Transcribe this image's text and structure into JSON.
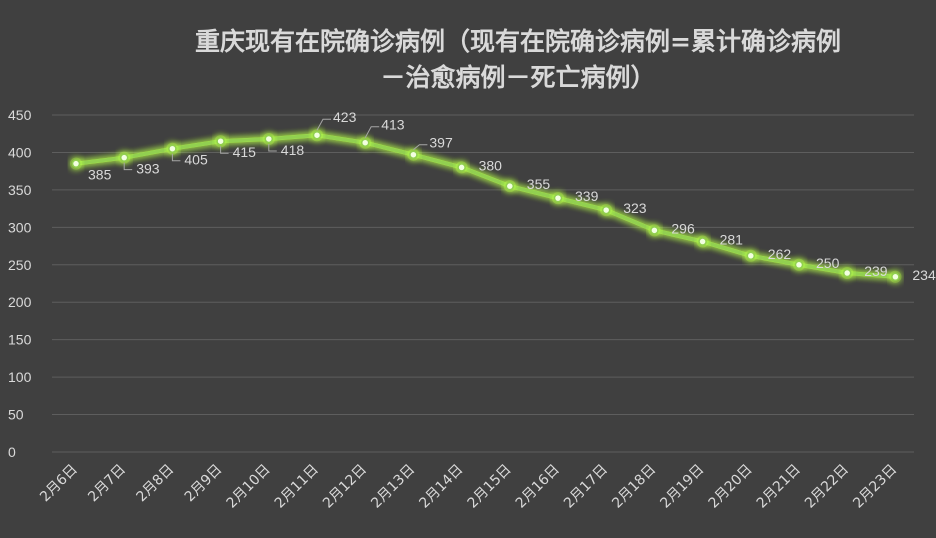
{
  "chart_data": {
    "type": "line",
    "title_lines": [
      "重庆现有在院确诊病例（现有在院确诊病例=累计确诊病例",
      "－治愈病例－死亡病例）"
    ],
    "categories": [
      "2月6日",
      "2月7日",
      "2月8日",
      "2月9日",
      "2月10日",
      "2月11日",
      "2月12日",
      "2月13日",
      "2月14日",
      "2月15日",
      "2月16日",
      "2月17日",
      "2月18日",
      "2月19日",
      "2月20日",
      "2月21日",
      "2月22日",
      "2月23日"
    ],
    "series": [
      {
        "values": [
          385,
          393,
          405,
          415,
          418,
          423,
          413,
          397,
          380,
          355,
          339,
          323,
          296,
          281,
          262,
          250,
          239,
          234
        ]
      }
    ],
    "ylim": [
      0,
      450
    ],
    "yticks": [
      0,
      50,
      100,
      150,
      200,
      250,
      300,
      350,
      400,
      450
    ],
    "grid": true,
    "line_color": "#92d050",
    "glow_color": "#b7ff4a",
    "background": "#404040"
  }
}
